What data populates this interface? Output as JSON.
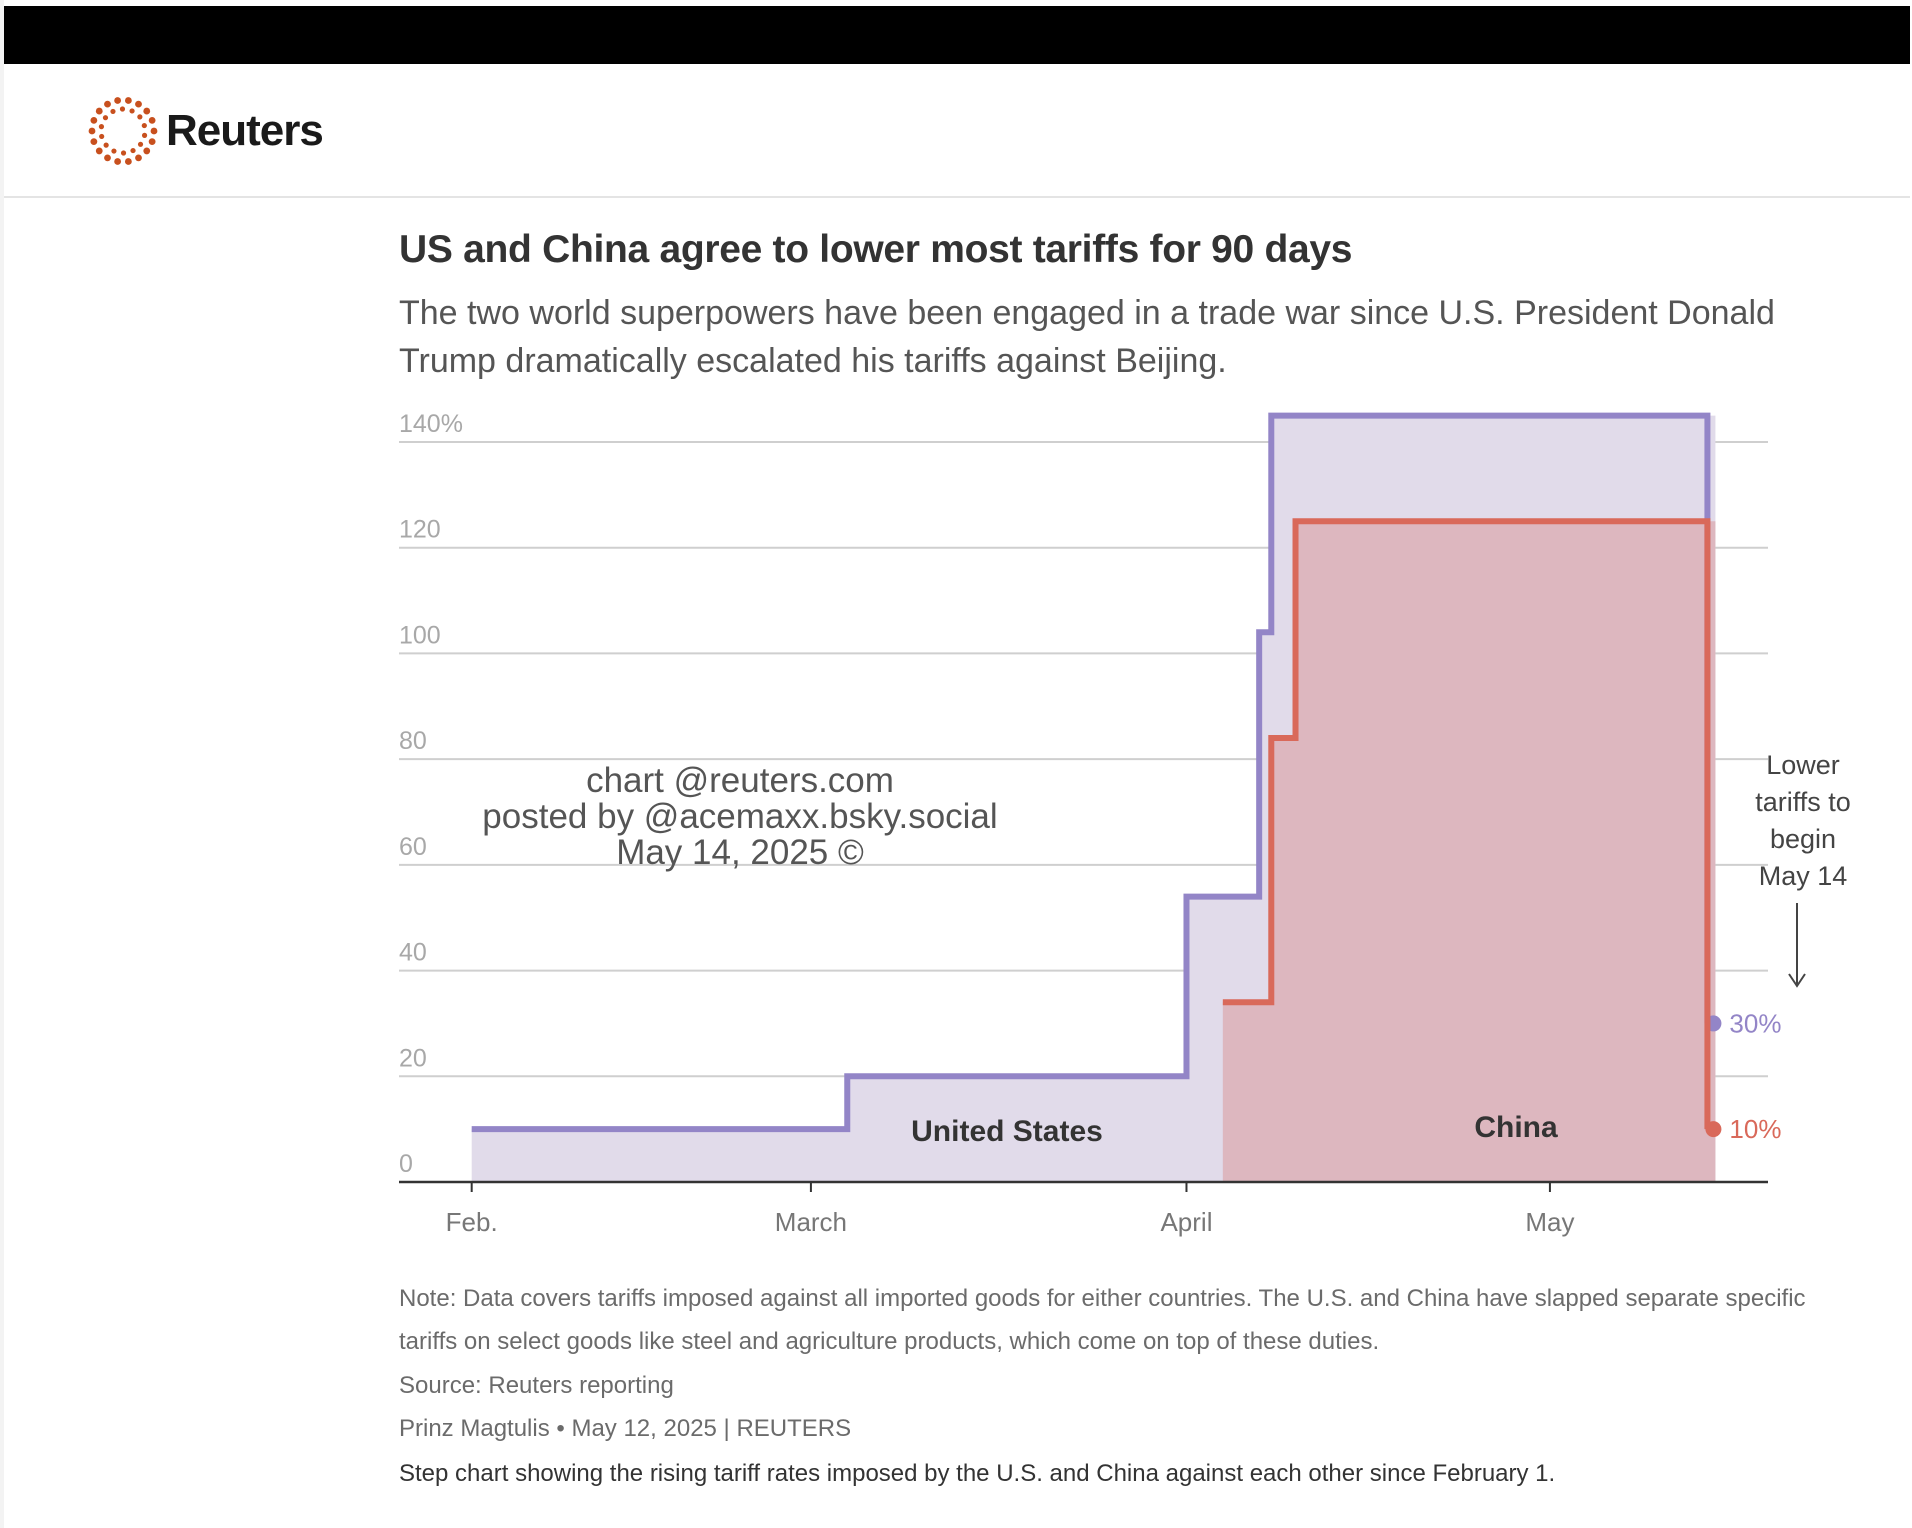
{
  "brand": {
    "name": "Reuters",
    "logo_icon": "reuters-dot-ring-icon",
    "color": "#c8501e"
  },
  "chart_data": {
    "type": "step-area",
    "title": "US and China agree to lower most tariffs for 90 days",
    "subtitle": "The two world superpowers have been engaged in a trade war since U.S. President Donald Trump dramatically escalated his tariffs against Beijing.",
    "xlabel": "",
    "ylabel": "",
    "ylim": [
      0,
      140
    ],
    "grid": true,
    "yticks": [
      {
        "value": 0,
        "label": "0"
      },
      {
        "value": 20,
        "label": "20"
      },
      {
        "value": 40,
        "label": "40"
      },
      {
        "value": 60,
        "label": "60"
      },
      {
        "value": 80,
        "label": "80"
      },
      {
        "value": 100,
        "label": "100"
      },
      {
        "value": 120,
        "label": "120"
      },
      {
        "value": 140,
        "label": "140%"
      }
    ],
    "xlim": [
      "2025-01-26",
      "2025-05-19"
    ],
    "xticks": [
      {
        "date": "2025-02-01",
        "label": "Feb."
      },
      {
        "date": "2025-03-01",
        "label": "March"
      },
      {
        "date": "2025-04-01",
        "label": "April"
      },
      {
        "date": "2025-05-01",
        "label": "May"
      }
    ],
    "series": [
      {
        "name": "United States",
        "color": "#9385c7",
        "fill": "#e1dbea",
        "steps": [
          {
            "date": "2025-02-01",
            "value": 10
          },
          {
            "date": "2025-03-04",
            "value": 20
          },
          {
            "date": "2025-04-01",
            "value": 54
          },
          {
            "date": "2025-04-07",
            "value": 104
          },
          {
            "date": "2025-04-08",
            "value": 145
          },
          {
            "date": "2025-05-14",
            "value": 30
          }
        ],
        "end_date": "2025-05-14",
        "end_label": "30%"
      },
      {
        "name": "China",
        "color": "#d9695a",
        "fill": "#ddb7bf",
        "steps": [
          {
            "date": "2025-04-04",
            "value": 34
          },
          {
            "date": "2025-04-08",
            "value": 84
          },
          {
            "date": "2025-04-10",
            "value": 125
          },
          {
            "date": "2025-05-14",
            "value": 10
          }
        ],
        "end_date": "2025-05-14",
        "end_label": "10%"
      }
    ],
    "annotation": {
      "lines": [
        "Lower",
        "tariffs to",
        "begin",
        "May 14"
      ],
      "arrow_icon": "down-arrow-icon"
    }
  },
  "footer": {
    "note": "Note: Data covers tariffs imposed against all imported goods for either countries. The U.S. and China have slapped separate specific tariffs on select goods like steel and agriculture products, which come on top of these duties.",
    "source": "Source: Reuters reporting",
    "byline": "Prinz Magtulis • May 12, 2025 | REUTERS",
    "description": "Step chart showing the rising tariff rates imposed by the U.S. and China against each other since February 1."
  },
  "watermark": {
    "lines": [
      "chart @reuters.com",
      "posted by @acemaxx.bsky.social",
      "May 14, 2025 ©"
    ]
  }
}
